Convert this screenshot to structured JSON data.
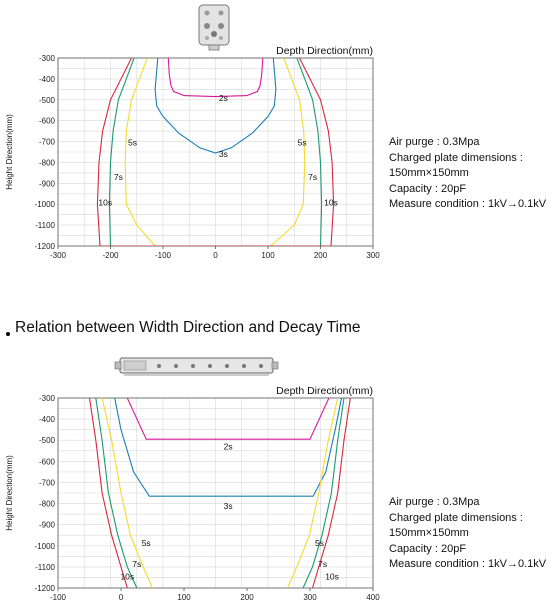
{
  "section2": {
    "title": "Relation between Width Direction and Decay Time"
  },
  "info1": {
    "lines": [
      "Air purge : 0.3Mpa",
      "Charged plate dimensions :",
      "150mm×150mm",
      "Capacity : 20pF",
      "Measure condition : 1kV→0.1kV"
    ]
  },
  "info2": {
    "lines": [
      "Air purge : 0.3Mpa",
      "Charged plate dimensions :",
      "150mm×150mm",
      "Capacity : 20pF",
      "Measure condition : 1kV→0.1kV"
    ]
  },
  "colors": {
    "2s": "#d6199c",
    "3s": "#1a7fb5",
    "5s": "#f2dc29",
    "7s": "#1d9a6e",
    "10s": "#d8283e",
    "grid": "#d8d8d8",
    "axis": "#555555"
  },
  "chart_data": [
    {
      "type": "line",
      "xlabel": "Depth Direction(mm)",
      "ylabel": "Height Direction(mm)",
      "xlim": [
        -300,
        300
      ],
      "ylim": [
        -1200,
        -300
      ],
      "xticks": [
        -300,
        -200,
        -100,
        0,
        100,
        200,
        300
      ],
      "yticks": [
        -300,
        -400,
        -500,
        -600,
        -700,
        -800,
        -900,
        -1000,
        -1100,
        -1200
      ],
      "grid": true,
      "series": [
        {
          "name": "2s",
          "x": [
            -90,
            -88,
            -85,
            -80,
            -60,
            0,
            60,
            80,
            85,
            88,
            90
          ],
          "y": [
            -300,
            -380,
            -430,
            -460,
            -480,
            -485,
            -480,
            -460,
            -430,
            -380,
            -300
          ]
        },
        {
          "name": "3s",
          "x": [
            -110,
            -115,
            -112,
            -100,
            -70,
            -30,
            0,
            30,
            70,
            100,
            112,
            115,
            110
          ],
          "y": [
            -300,
            -450,
            -530,
            -580,
            -660,
            -730,
            -755,
            -730,
            -660,
            -580,
            -530,
            -450,
            -300
          ]
        },
        {
          "name": "5s",
          "x": [
            -130,
            -145,
            -160,
            -170,
            -172,
            -170,
            -150,
            -115,
            105,
            150,
            167,
            170,
            168,
            160,
            145,
            130
          ],
          "y": [
            -300,
            -400,
            -500,
            -650,
            -800,
            -1000,
            -1100,
            -1200,
            -1200,
            -1100,
            -1000,
            -800,
            -650,
            -500,
            -400,
            -300
          ]
        },
        {
          "name": "7s",
          "x": [
            -155,
            -170,
            -185,
            -195,
            -200,
            -202,
            -200
          ],
          "y": [
            -300,
            -400,
            -500,
            -650,
            -800,
            -1000,
            -1200
          ],
          "mirror": true
        },
        {
          "name": "10s",
          "x": [
            -160,
            -180,
            -200,
            -215,
            -222,
            -225,
            -220
          ],
          "y": [
            -300,
            -400,
            -500,
            -650,
            -800,
            -1000,
            -1200
          ],
          "mirror": true
        }
      ],
      "annotations": [
        {
          "text": "2s",
          "x": 15,
          "y": -505
        },
        {
          "text": "3s",
          "x": 15,
          "y": -775
        },
        {
          "text": "5s",
          "x": -158,
          "y": -720
        },
        {
          "text": "5s",
          "x": 165,
          "y": -720
        },
        {
          "text": "7s",
          "x": -185,
          "y": -885
        },
        {
          "text": "7s",
          "x": 185,
          "y": -885
        },
        {
          "text": "10s",
          "x": -210,
          "y": -1005
        },
        {
          "text": "10s",
          "x": 220,
          "y": -1005
        }
      ]
    },
    {
      "type": "line",
      "xlabel": "Depth Direction(mm)",
      "ylabel": "Height Direction(mm)",
      "xlim": [
        -100,
        400
      ],
      "ylim": [
        -1200,
        -300
      ],
      "xticks": [
        -100,
        0,
        100,
        200,
        300,
        400
      ],
      "yticks": [
        -300,
        -400,
        -500,
        -600,
        -700,
        -800,
        -900,
        -1000,
        -1100,
        -1200
      ],
      "grid": true,
      "series": [
        {
          "name": "2s",
          "x": [
            10,
            40,
            300,
            330
          ],
          "y": [
            -300,
            -495,
            -495,
            -300
          ]
        },
        {
          "name": "3s",
          "x": [
            -10,
            0,
            20,
            45,
            305,
            325,
            340,
            350
          ],
          "y": [
            -300,
            -450,
            -650,
            -765,
            -765,
            -650,
            -450,
            -300
          ]
        },
        {
          "name": "5s",
          "x": [
            -30,
            -15,
            0,
            15,
            35,
            50
          ],
          "y": [
            -300,
            -500,
            -750,
            -950,
            -1100,
            -1200
          ],
          "mirror_about": 157
        },
        {
          "name": "7s",
          "x": [
            -40,
            -30,
            -20,
            -5,
            10,
            25
          ],
          "y": [
            -300,
            -500,
            -750,
            -950,
            -1100,
            -1200
          ],
          "mirror_about": 157
        },
        {
          "name": "10s",
          "x": [
            -50,
            -40,
            -30,
            -15,
            0,
            10
          ],
          "y": [
            -300,
            -500,
            -750,
            -950,
            -1100,
            -1200
          ],
          "mirror_about": 157
        }
      ],
      "annotations": [
        {
          "text": "2s",
          "x": 170,
          "y": -545
        },
        {
          "text": "3s",
          "x": 170,
          "y": -825
        },
        {
          "text": "5s",
          "x": 40,
          "y": -1000
        },
        {
          "text": "5s",
          "x": 315,
          "y": -1000
        },
        {
          "text": "7s",
          "x": 25,
          "y": -1100
        },
        {
          "text": "7s",
          "x": 320,
          "y": -1100
        },
        {
          "text": "10s",
          "x": 10,
          "y": -1160
        },
        {
          "text": "10s",
          "x": 335,
          "y": -1160
        }
      ]
    }
  ]
}
